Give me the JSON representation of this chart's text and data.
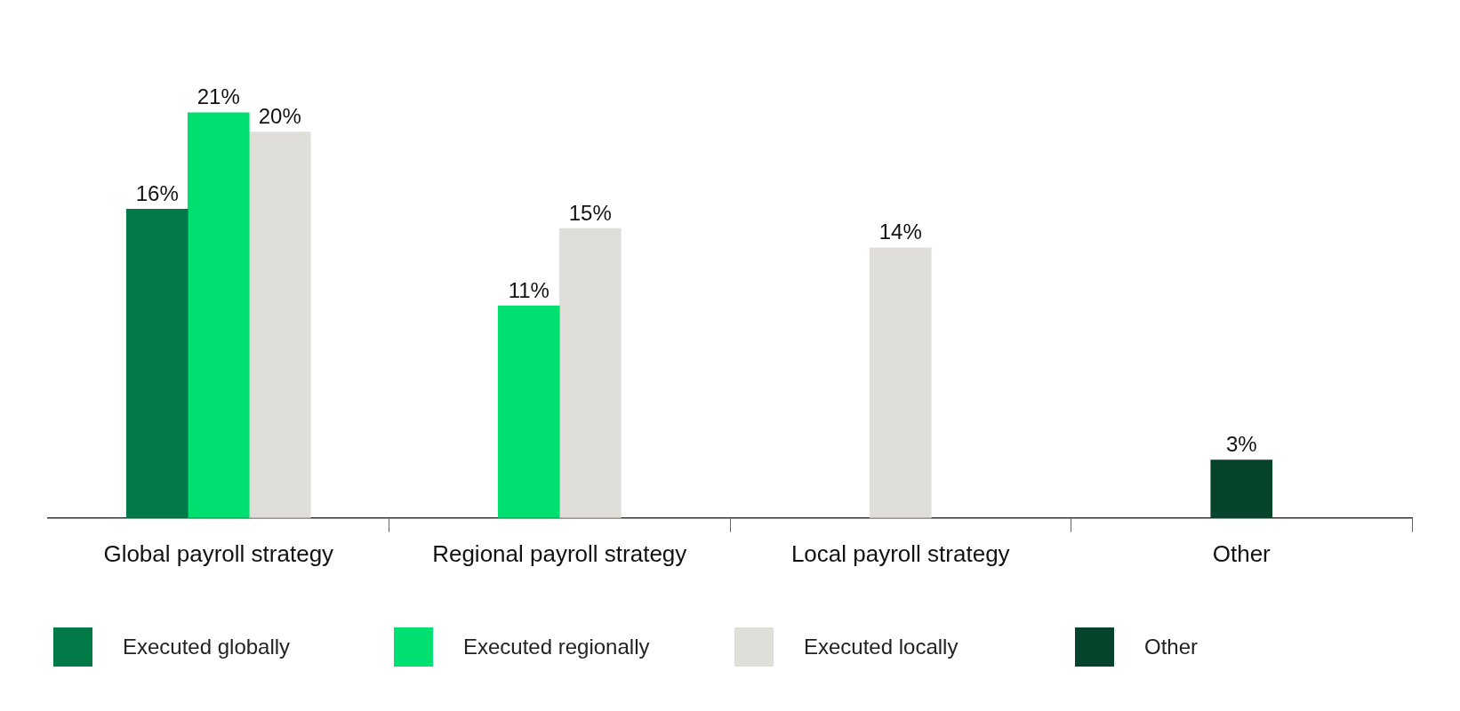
{
  "chart_data": {
    "type": "bar",
    "categories": [
      "Global payroll strategy",
      "Regional payroll strategy",
      "Local payroll strategy",
      "Other"
    ],
    "series": [
      {
        "name": "Executed globally",
        "color": "#017a48",
        "values": [
          16,
          null,
          null,
          null
        ],
        "value_labels": [
          "16%",
          null,
          null,
          null
        ]
      },
      {
        "name": "Executed regionally",
        "color": "#00e070",
        "values": [
          21,
          11,
          null,
          null
        ],
        "value_labels": [
          "21%",
          "11%",
          null,
          null
        ]
      },
      {
        "name": "Executed locally",
        "color": "#e0ded8",
        "values": [
          20,
          15,
          14,
          null
        ],
        "value_labels": [
          "20%",
          "15%",
          "14%",
          null
        ]
      },
      {
        "name": "Other",
        "color": "#05432b",
        "values": [
          null,
          null,
          null,
          3
        ],
        "value_labels": [
          null,
          null,
          null,
          "3%"
        ]
      }
    ],
    "legend": "bottom",
    "grid": false
  }
}
